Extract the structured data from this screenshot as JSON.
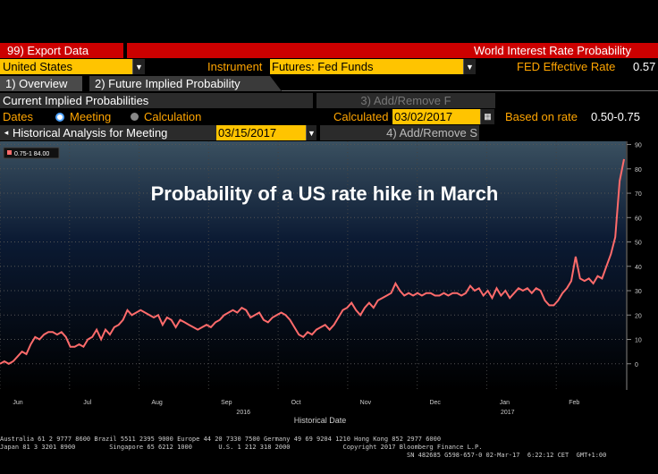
{
  "header": {
    "export_label": "99) Export Data",
    "title": "World Interest Rate Probability"
  },
  "row2": {
    "country": "United States",
    "instrument_label": "Instrument",
    "instrument_value": "Futures: Fed Funds",
    "fed_rate_label": "FED Effective Rate",
    "fed_rate_value": "0.57"
  },
  "tabs": [
    {
      "label": "1) Overview"
    },
    {
      "label": "2) Future Implied Probability"
    }
  ],
  "row4": {
    "section_label": "Current Implied Probabilities",
    "add_remove_label": "3) Add/Remove F"
  },
  "row5": {
    "dates_label": "Dates",
    "meeting_label": "Meeting",
    "calculation_label": "Calculation",
    "calculated_label": "Calculated",
    "calculated_value": "03/02/2017",
    "based_label": "Based on rate",
    "based_value": "0.50-0.75"
  },
  "row6": {
    "hist_label": "Historical Analysis for Meeting",
    "meeting_date": "03/15/2017",
    "add_remove_label": "4) Add/Remove S"
  },
  "colors": {
    "amber": "#ffa500",
    "red_bar": "#cc0000",
    "series": "#ff6b6b"
  },
  "chart_data": {
    "type": "line",
    "title": "Probability of a US rate hike in March",
    "legend": "0.75-1 84.00",
    "xlabel": "Historical Date",
    "ylim": [
      -10,
      90
    ],
    "yticks": [
      0,
      10,
      20,
      30,
      40,
      50,
      60,
      70,
      80,
      90
    ],
    "month_labels": [
      "Jun",
      "Jul",
      "Aug",
      "Sep",
      "Oct",
      "Nov",
      "Dec",
      "Jan",
      "Feb"
    ],
    "year_labels": [
      "2016",
      "2017"
    ],
    "series": [
      {
        "name": "0.75-1",
        "values": [
          0,
          1,
          0,
          1,
          3,
          5,
          4,
          8,
          11,
          10,
          12,
          13,
          13,
          12,
          13,
          11,
          7,
          7,
          8,
          7,
          10,
          11,
          14,
          10,
          14,
          12,
          15,
          16,
          18,
          22,
          20,
          21,
          22,
          21,
          20,
          19,
          20,
          16,
          19,
          18,
          15,
          18,
          17,
          16,
          15,
          14,
          15,
          16,
          15,
          17,
          18,
          20,
          21,
          22,
          21,
          23,
          22,
          19,
          20,
          21,
          18,
          17,
          19,
          20,
          21,
          20,
          18,
          15,
          12,
          11,
          13,
          12,
          14,
          15,
          16,
          14,
          16,
          19,
          22,
          23,
          25,
          22,
          20,
          23,
          25,
          23,
          26,
          27,
          28,
          29,
          33,
          30,
          28,
          29,
          28,
          29,
          28,
          29,
          29,
          28,
          28,
          29,
          28,
          29,
          29,
          28,
          29,
          32,
          30,
          31,
          28,
          30,
          27,
          31,
          28,
          30,
          27,
          29,
          31,
          30,
          31,
          29,
          31,
          30,
          26,
          24,
          24,
          26,
          29,
          31,
          34,
          44,
          35,
          34,
          35,
          33,
          36,
          35,
          40,
          45,
          52,
          75,
          84
        ]
      }
    ]
  },
  "footer": {
    "line1": "Australia 61 2 9777 8600 Brazil 5511 2395 9000 Europe 44 20 7330 7500 Germany 49 69 9204 1210 Hong Kong 852 2977 6000",
    "line2": "Japan 81 3 3201 8900         Singapore 65 6212 1000       U.S. 1 212 318 2000              Copyright 2017 Bloomberg Finance L.P.",
    "line3": "SN 482685 G598-657-0 02-Mar-17  6:22:12 CET  GMT+1:00"
  }
}
